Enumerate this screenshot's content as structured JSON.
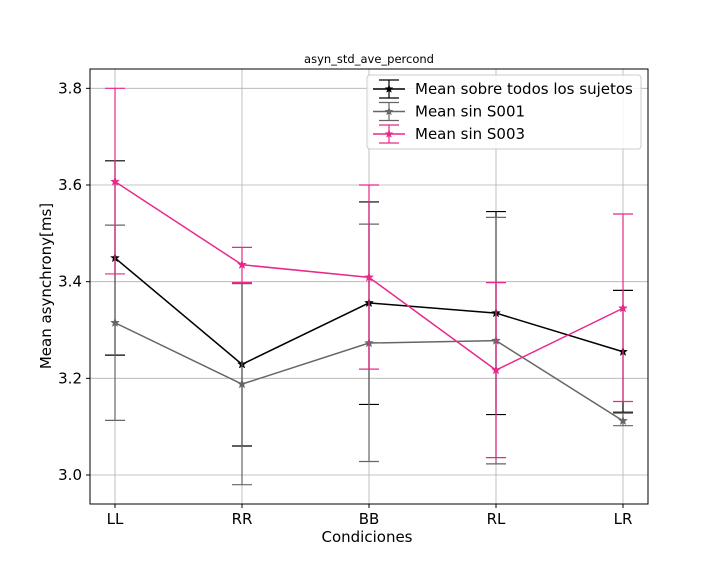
{
  "chart_data": {
    "type": "line",
    "title": "asyn_std_ave_percond",
    "xlabel": "Condiciones",
    "ylabel": "Mean asynchrony[ms]",
    "categories": [
      "LL",
      "RR",
      "BB",
      "RL",
      "LR"
    ],
    "ylim": [
      2.94,
      3.84
    ],
    "yticks": [
      "3.0",
      "3.2",
      "3.4",
      "3.6",
      "3.8"
    ],
    "grid": true,
    "legend_position": "top-right",
    "series": [
      {
        "name": "Mean sobre todos los sujetos",
        "color": "#000000",
        "values": [
          3.449,
          3.229,
          3.356,
          3.335,
          3.255
        ],
        "err_low": [
          3.248,
          3.06,
          3.146,
          3.125,
          3.13
        ],
        "err_high": [
          3.65,
          3.398,
          3.565,
          3.545,
          3.382
        ]
      },
      {
        "name": "Mean sin S001",
        "color": "#666666",
        "values": [
          3.315,
          3.188,
          3.273,
          3.278,
          3.112
        ],
        "err_low": [
          3.113,
          2.98,
          3.028,
          3.023,
          3.102
        ],
        "err_high": [
          3.517,
          3.396,
          3.519,
          3.533,
          3.128
        ]
      },
      {
        "name": "Mean sin S003",
        "color": "#e8288a",
        "values": [
          3.607,
          3.435,
          3.409,
          3.217,
          3.345
        ],
        "err_low": [
          3.416,
          3.398,
          3.219,
          3.036,
          3.152
        ],
        "err_high": [
          3.8,
          3.471,
          3.6,
          3.398,
          3.54
        ]
      }
    ]
  }
}
